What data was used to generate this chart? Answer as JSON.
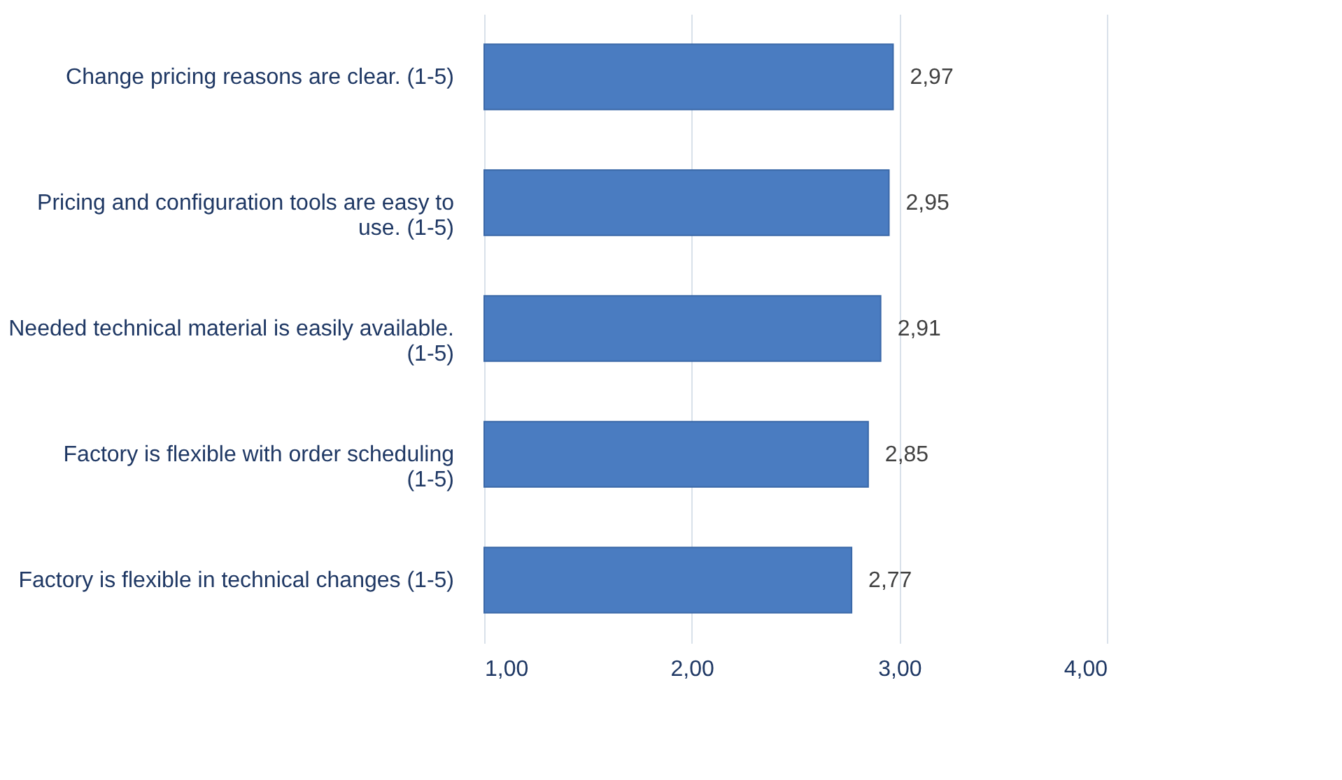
{
  "chart_data": {
    "type": "bar",
    "orientation": "horizontal",
    "categories": [
      "Change pricing reasons are clear. (1-5)",
      "Pricing and configuration tools are easy to use. (1-5)",
      "Needed technical material is easily available. (1-5)",
      "Factory is flexible with order scheduling (1-5)",
      "Factory is flexible in technical changes (1-5)"
    ],
    "values": [
      2.97,
      2.95,
      2.91,
      2.85,
      2.77
    ],
    "value_labels": [
      "2,97",
      "2,95",
      "2,91",
      "2,85",
      "2,77"
    ],
    "color": "#4a7cc1",
    "xlim": [
      1,
      4
    ],
    "xticks": [
      {
        "value": 1,
        "label": "1,00"
      },
      {
        "value": 2,
        "label": "2,00"
      },
      {
        "value": 3,
        "label": "3,00"
      },
      {
        "value": 4,
        "label": "4,00"
      }
    ],
    "grid": "x"
  }
}
